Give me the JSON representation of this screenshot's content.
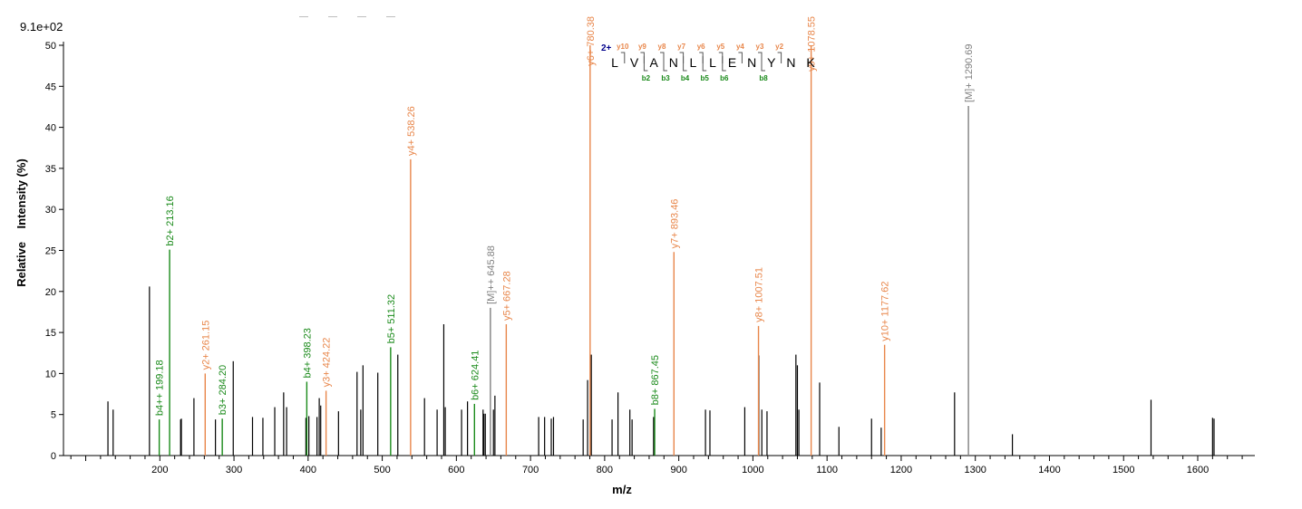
{
  "scale_label": "9.1e+02",
  "chart_data": {
    "type": "bar",
    "xlabel": "m/z",
    "ylabel": "Relative    Intensity (%)",
    "xlim": [
      70,
      1685
    ],
    "ylim": [
      0,
      50
    ],
    "xticks": [
      200,
      300,
      400,
      500,
      600,
      700,
      800,
      900,
      1000,
      1100,
      1200,
      1300,
      1400,
      1500,
      1600
    ],
    "yticks": [
      0,
      5,
      10,
      15,
      20,
      25,
      30,
      35,
      40,
      45,
      50
    ],
    "colors": {
      "b": "#1a8a1a",
      "y": "#e8864a",
      "M": "#808080",
      "unlabeled": "#000000",
      "charge": "#00008b"
    },
    "unlabeled_peaks": [
      {
        "mz": 130,
        "i": 6.6
      },
      {
        "mz": 137,
        "i": 5.6
      },
      {
        "mz": 186,
        "i": 20.6
      },
      {
        "mz": 228,
        "i": 4.4
      },
      {
        "mz": 229,
        "i": 4.5
      },
      {
        "mz": 246,
        "i": 7.0
      },
      {
        "mz": 275,
        "i": 4.4
      },
      {
        "mz": 299,
        "i": 11.5
      },
      {
        "mz": 325,
        "i": 4.7
      },
      {
        "mz": 339,
        "i": 4.6
      },
      {
        "mz": 355,
        "i": 5.9
      },
      {
        "mz": 367,
        "i": 7.7
      },
      {
        "mz": 371,
        "i": 5.9
      },
      {
        "mz": 397,
        "i": 4.6
      },
      {
        "mz": 401,
        "i": 4.8
      },
      {
        "mz": 412,
        "i": 4.7
      },
      {
        "mz": 415,
        "i": 7.0
      },
      {
        "mz": 417,
        "i": 6.1
      },
      {
        "mz": 441,
        "i": 5.4
      },
      {
        "mz": 466,
        "i": 10.2
      },
      {
        "mz": 471,
        "i": 5.6
      },
      {
        "mz": 474,
        "i": 11.0
      },
      {
        "mz": 494,
        "i": 10.1
      },
      {
        "mz": 521,
        "i": 12.3
      },
      {
        "mz": 557,
        "i": 7.0
      },
      {
        "mz": 574,
        "i": 5.6
      },
      {
        "mz": 583,
        "i": 16.0
      },
      {
        "mz": 585,
        "i": 5.9
      },
      {
        "mz": 607,
        "i": 5.6
      },
      {
        "mz": 615,
        "i": 6.6
      },
      {
        "mz": 636,
        "i": 5.6
      },
      {
        "mz": 637,
        "i": 5.1
      },
      {
        "mz": 639,
        "i": 5.1
      },
      {
        "mz": 650,
        "i": 5.6
      },
      {
        "mz": 652,
        "i": 7.3
      },
      {
        "mz": 711,
        "i": 4.7
      },
      {
        "mz": 719,
        "i": 4.7
      },
      {
        "mz": 728,
        "i": 4.5
      },
      {
        "mz": 731,
        "i": 4.7
      },
      {
        "mz": 771,
        "i": 4.4
      },
      {
        "mz": 777,
        "i": 9.2
      },
      {
        "mz": 782,
        "i": 12.3
      },
      {
        "mz": 810,
        "i": 4.4
      },
      {
        "mz": 818,
        "i": 7.7
      },
      {
        "mz": 834,
        "i": 5.6
      },
      {
        "mz": 837,
        "i": 4.4
      },
      {
        "mz": 866,
        "i": 4.7
      },
      {
        "mz": 936,
        "i": 5.6
      },
      {
        "mz": 942,
        "i": 5.5
      },
      {
        "mz": 989,
        "i": 5.9
      },
      {
        "mz": 1008,
        "i": 12.2
      },
      {
        "mz": 1012,
        "i": 5.6
      },
      {
        "mz": 1019,
        "i": 5.4
      },
      {
        "mz": 1058,
        "i": 12.3
      },
      {
        "mz": 1060,
        "i": 11.0
      },
      {
        "mz": 1062,
        "i": 5.6
      },
      {
        "mz": 1090,
        "i": 8.9
      },
      {
        "mz": 1116,
        "i": 3.5
      },
      {
        "mz": 1160,
        "i": 4.5
      },
      {
        "mz": 1173,
        "i": 3.4
      },
      {
        "mz": 1272,
        "i": 7.7
      },
      {
        "mz": 1350,
        "i": 2.6
      },
      {
        "mz": 1537,
        "i": 6.8
      },
      {
        "mz": 1620,
        "i": 4.6
      },
      {
        "mz": 1622,
        "i": 4.5
      }
    ],
    "labeled_peaks": [
      {
        "mz": 199.18,
        "i": 4.4,
        "ion": "b",
        "label": "b4++ 199.18"
      },
      {
        "mz": 213.16,
        "i": 25.1,
        "ion": "b",
        "label": "b2+ 213.16"
      },
      {
        "mz": 261.15,
        "i": 10.0,
        "ion": "y",
        "label": "y2+ 261.15"
      },
      {
        "mz": 284.2,
        "i": 4.5,
        "ion": "b",
        "label": "b3+ 284.20"
      },
      {
        "mz": 398.23,
        "i": 9.0,
        "ion": "b",
        "label": "b4+ 398.23"
      },
      {
        "mz": 424.22,
        "i": 7.9,
        "ion": "y",
        "label": "y3+ 424.22"
      },
      {
        "mz": 511.32,
        "i": 13.2,
        "ion": "b",
        "label": "b5+ 511.32"
      },
      {
        "mz": 538.26,
        "i": 36.1,
        "ion": "y",
        "label": "y4+ 538.26"
      },
      {
        "mz": 624.41,
        "i": 6.3,
        "ion": "b",
        "label": "b6+ 624.41"
      },
      {
        "mz": 645.88,
        "i": 18.0,
        "ion": "M",
        "label": "[M]++ 645.88"
      },
      {
        "mz": 667.28,
        "i": 16.0,
        "ion": "y",
        "label": "y5+ 667.28"
      },
      {
        "mz": 780.38,
        "i": 50.0,
        "ion": "y",
        "label": "y6+ 780.38"
      },
      {
        "mz": 867.45,
        "i": 5.7,
        "ion": "b",
        "label": "b8+ 867.45"
      },
      {
        "mz": 893.46,
        "i": 24.8,
        "ion": "y",
        "label": "y7+ 893.46"
      },
      {
        "mz": 1007.51,
        "i": 15.8,
        "ion": "y",
        "label": "y8+ 1007.51"
      },
      {
        "mz": 1078.55,
        "i": 50.0,
        "ion": "y",
        "label": "y9+ 1078.55"
      },
      {
        "mz": 1177.62,
        "i": 13.5,
        "ion": "y",
        "label": "y10+ 1177.62"
      },
      {
        "mz": 1290.69,
        "i": 42.6,
        "ion": "M",
        "label": "[M]+ 1290.69"
      }
    ],
    "annotation": {
      "charge": "2+",
      "sequence": [
        "L",
        "V",
        "A",
        "N",
        "L",
        "L",
        "E",
        "N",
        "Y",
        "N",
        "K"
      ],
      "y_ions": [
        {
          "after": 1,
          "label": "y10"
        },
        {
          "after": 2,
          "label": "y9"
        },
        {
          "after": 3,
          "label": "y8"
        },
        {
          "after": 4,
          "label": "y7"
        },
        {
          "after": 5,
          "label": "y6"
        },
        {
          "after": 6,
          "label": "y5"
        },
        {
          "after": 7,
          "label": "y4"
        },
        {
          "after": 8,
          "label": "y3"
        },
        {
          "after": 9,
          "label": "y2"
        }
      ],
      "b_ions": [
        {
          "after": 2,
          "label": "b2"
        },
        {
          "after": 3,
          "label": "b3"
        },
        {
          "after": 4,
          "label": "b4"
        },
        {
          "after": 5,
          "label": "b5"
        },
        {
          "after": 6,
          "label": "b6"
        },
        {
          "after": 8,
          "label": "b8"
        }
      ]
    }
  }
}
